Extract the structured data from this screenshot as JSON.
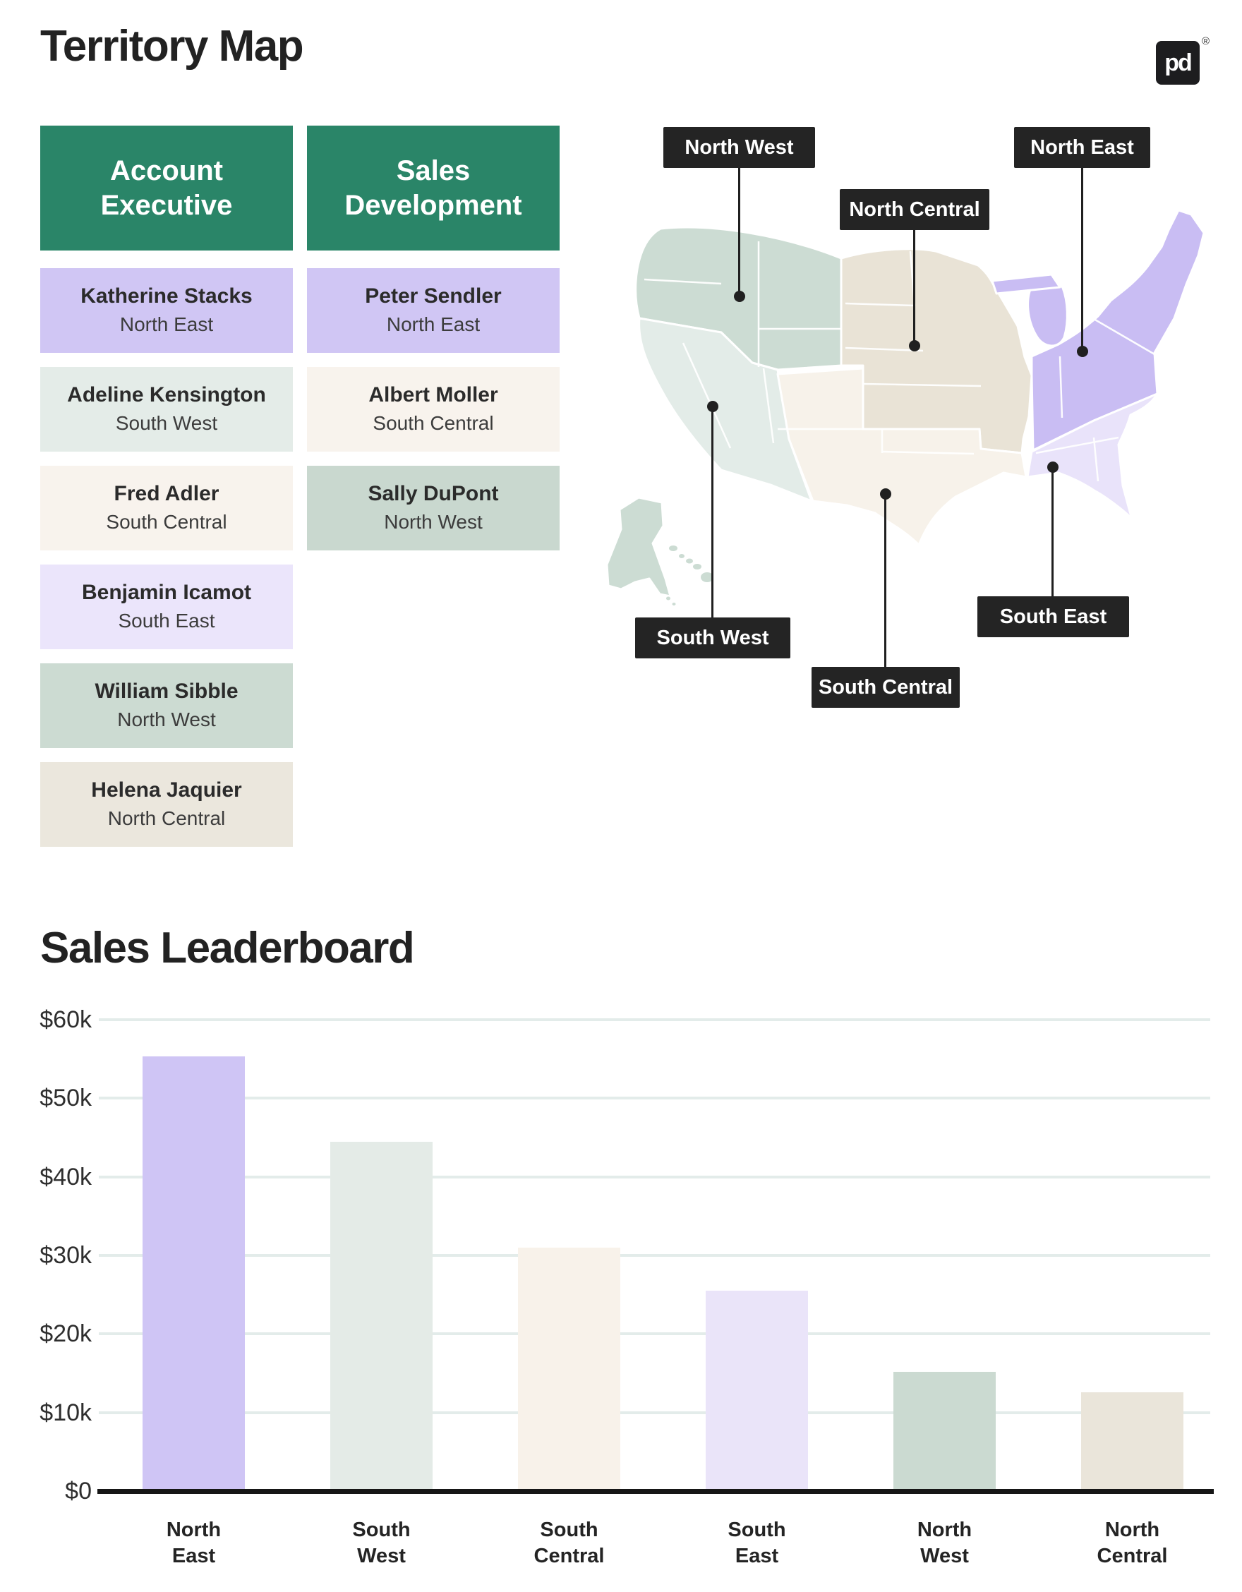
{
  "page": {
    "title": "Territory Map",
    "section2_title": "Sales Leaderboard"
  },
  "logo": {
    "text": "pd",
    "registered": "®"
  },
  "teams": {
    "account_executive": {
      "header": "Account Executive",
      "members": [
        {
          "name": "Katherine Stacks",
          "region": "North East",
          "color": "#d0c6f4"
        },
        {
          "name": "Adeline Kensington",
          "region": "South West",
          "color": "#e4ece8"
        },
        {
          "name": "Fred Adler",
          "region": "South Central",
          "color": "#f8f3ed"
        },
        {
          "name": "Benjamin Icamot",
          "region": "South East",
          "color": "#ebe5fb"
        },
        {
          "name": "William Sibble",
          "region": "North West",
          "color": "#ccdbd2"
        },
        {
          "name": "Helena Jaquier",
          "region": "North Central",
          "color": "#ebe7dd"
        }
      ]
    },
    "sales_development": {
      "header": "Sales Development",
      "members": [
        {
          "name": "Peter Sendler",
          "region": "North East",
          "color": "#d0c6f4"
        },
        {
          "name": "Albert Moller",
          "region": "South Central",
          "color": "#f8f3ed"
        },
        {
          "name": "Sally DuPont",
          "region": "North West",
          "color": "#c9d8cf"
        }
      ]
    }
  },
  "map": {
    "header_color": "#2a8568",
    "label_bg": "#242424",
    "labels": {
      "north_west": "North West",
      "north_central": "North Central",
      "north_east": "North East",
      "south_west": "South West",
      "south_central": "South Central",
      "south_east": "South East"
    },
    "region_colors": {
      "north_west": "#ccdcd3",
      "south_west": "#e3ece8",
      "north_central": "#e9e3d6",
      "south_central": "#f7f2ea",
      "north_east": "#c9bdf3",
      "south_east": "#e9e3fa"
    }
  },
  "chart_data": {
    "type": "bar",
    "title": "Sales Leaderboard",
    "categories": [
      "North East",
      "South West",
      "South Central",
      "South East",
      "North West",
      "North Central"
    ],
    "values": [
      55300,
      44500,
      31000,
      25500,
      15200,
      12600
    ],
    "unit": "USD",
    "ylim": [
      0,
      60000
    ],
    "yticks": [
      {
        "label": "$60k",
        "value": 60000
      },
      {
        "label": "$50k",
        "value": 50000
      },
      {
        "label": "$40k",
        "value": 40000
      },
      {
        "label": "$30k",
        "value": 30000
      },
      {
        "label": "$20k",
        "value": 20000
      },
      {
        "label": "$10k",
        "value": 10000
      },
      {
        "label": "$0",
        "value": 0
      }
    ],
    "bar_colors": [
      "#cfc5f5",
      "#e4ebe7",
      "#f8f2ea",
      "#eae4f9",
      "#cbdad1",
      "#eae5da"
    ],
    "gridline_color": "#e3ecea",
    "xlabel": "",
    "ylabel": "",
    "legend": "none",
    "grid": "horizontal"
  }
}
